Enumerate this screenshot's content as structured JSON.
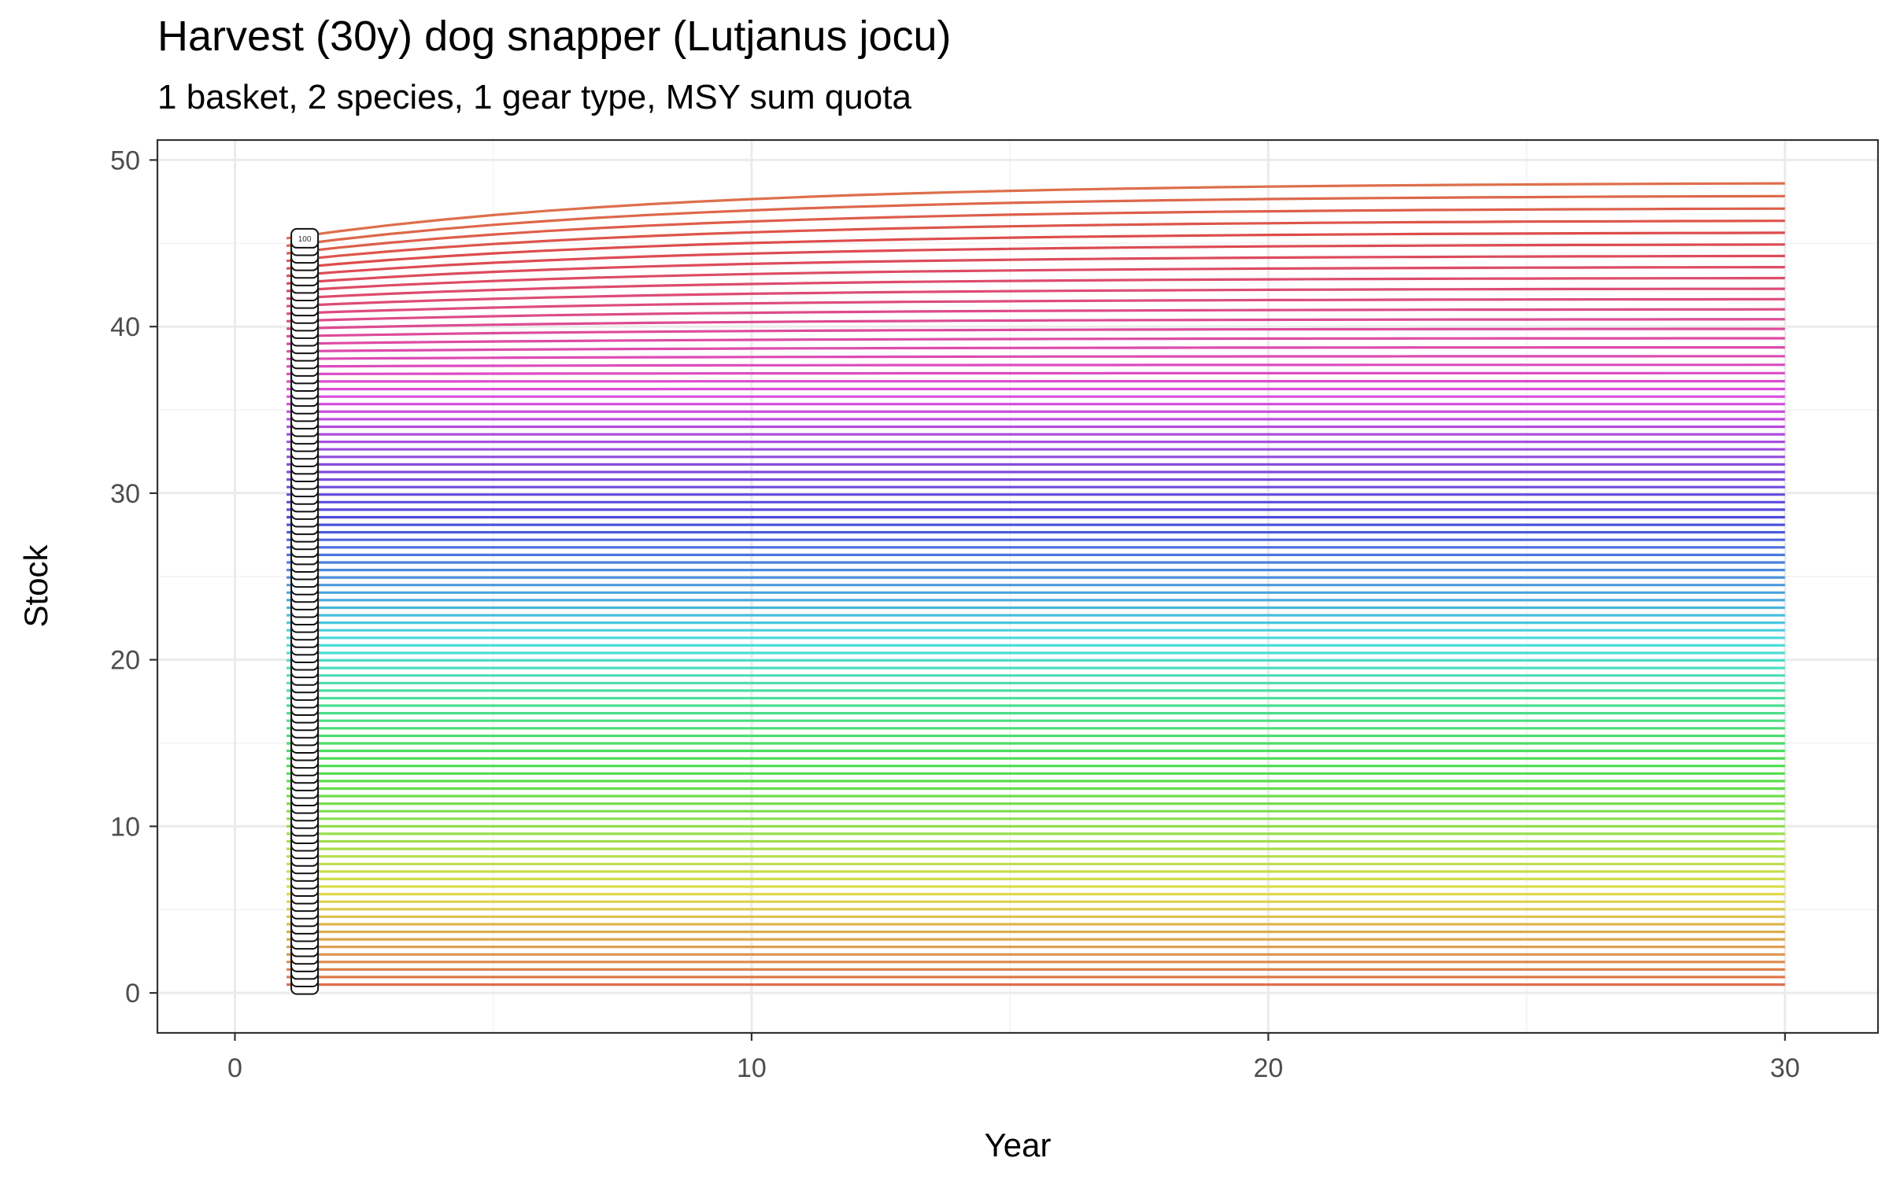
{
  "chart_data": {
    "type": "line",
    "title": "Harvest (30y) dog snapper (Lutjanus jocu)",
    "subtitle": "1 basket, 2 species, 1 gear type, MSY sum quota",
    "xlabel": "Year",
    "ylabel": "Stock",
    "xlim": [
      -1.5,
      31.8
    ],
    "ylim": [
      -2.4,
      51.2
    ],
    "xticks": [
      0,
      10,
      20,
      30
    ],
    "yticks": [
      0,
      10,
      20,
      30,
      40,
      50
    ],
    "x_start": 1,
    "x_end": 30,
    "n_series": 100,
    "series_start_stock_min": 0.5,
    "series_start_stock_max": 45.3,
    "series_end_stock_max": 48.6,
    "label_box_x": 1.35,
    "first_visible_label": "100",
    "legend": "none",
    "grid": true,
    "colors": {
      "panel_border": "#333333",
      "grid_major": "#ebebeb",
      "grid_minor": "#f3f3f3",
      "tick_text": "#4d4d4d"
    }
  }
}
